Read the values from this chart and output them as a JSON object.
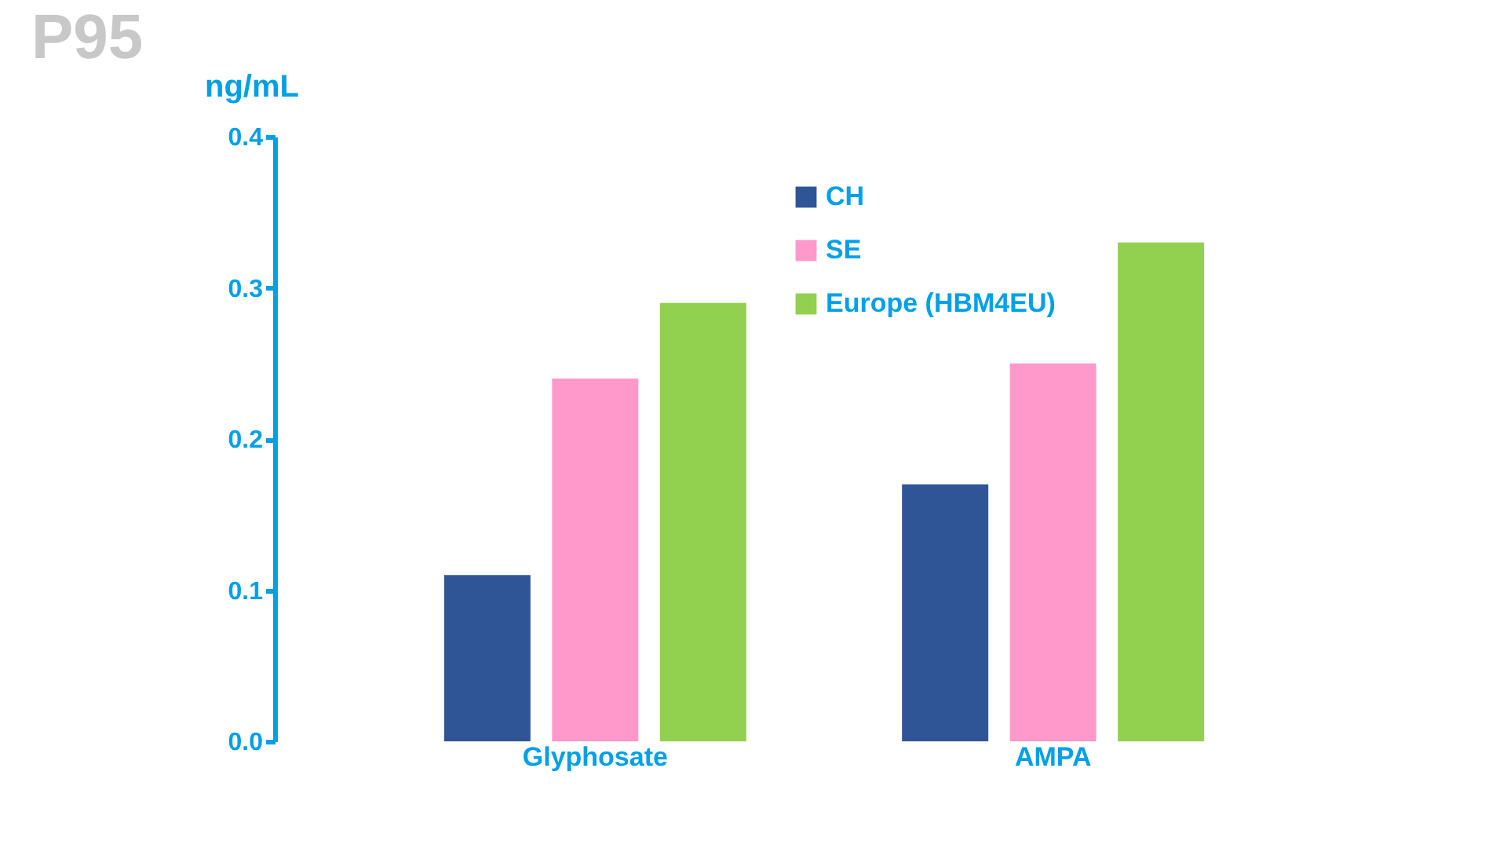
{
  "chart_data": {
    "type": "bar",
    "title": "P95",
    "ylabel": "ng/mL",
    "categories": [
      "Glyphosate",
      "AMPA"
    ],
    "series": [
      {
        "name": "CH",
        "color": "#2f5597",
        "values": [
          0.11,
          0.17
        ]
      },
      {
        "name": "SE",
        "color": "#ff99cc",
        "values": [
          0.24,
          0.25
        ]
      },
      {
        "name": "Europe (HBM4EU)",
        "color": "#92d050",
        "values": [
          0.29,
          0.33
        ]
      }
    ],
    "ylim": [
      0,
      0.4
    ],
    "yticks": [
      {
        "value": 0,
        "label": "0.0"
      },
      {
        "value": 0.1,
        "label": "0.1"
      },
      {
        "value": 0.2,
        "label": "0.2"
      },
      {
        "value": 0.3,
        "label": "0.3"
      },
      {
        "value": 0.4,
        "label": "0.4"
      }
    ],
    "grid": false,
    "legend": "top"
  }
}
